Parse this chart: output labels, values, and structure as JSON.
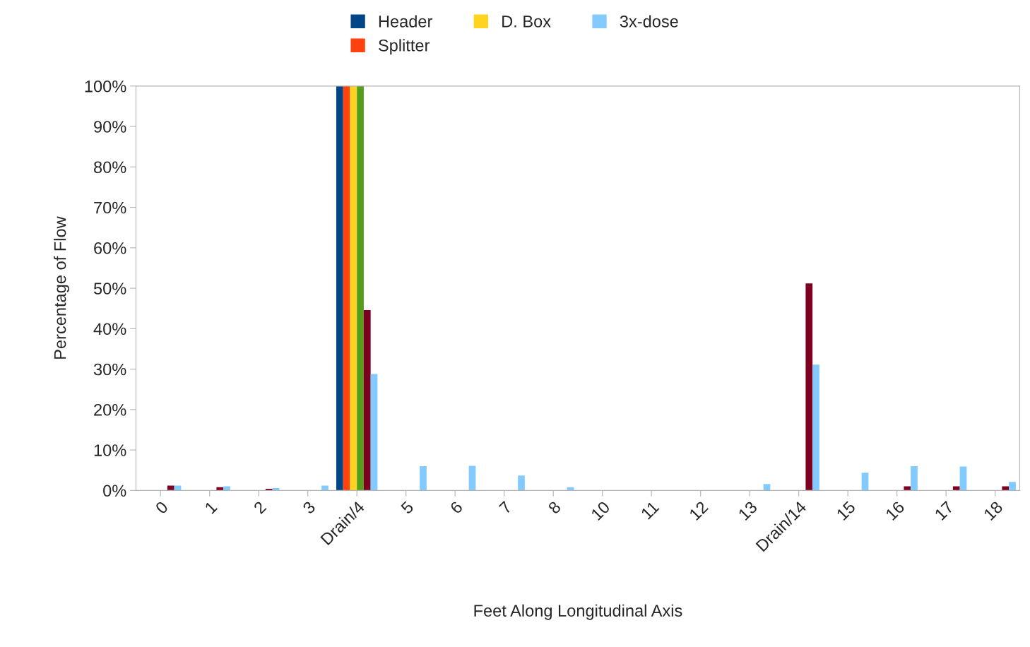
{
  "chart_data": {
    "type": "bar",
    "xlabel": "Feet Along Longitudinal Axis",
    "ylabel": "Percentage of Flow",
    "categories": [
      "0",
      "1",
      "2",
      "3",
      "Drain/4",
      "5",
      "6",
      "7",
      "8",
      "10",
      "11",
      "12",
      "13",
      "Drain/14",
      "15",
      "16",
      "17",
      "18"
    ],
    "series": [
      {
        "name": "Header",
        "color": "#004586",
        "values": [
          0,
          0,
          0,
          0,
          100,
          0,
          0,
          0,
          0,
          0,
          0,
          0,
          0,
          0,
          0,
          0,
          0,
          0
        ]
      },
      {
        "name": "Splitter",
        "color": "#ff420e",
        "values": [
          0,
          0,
          0,
          0,
          100,
          0,
          0,
          0,
          0,
          0,
          0,
          0,
          0,
          0,
          0,
          0,
          0,
          0
        ]
      },
      {
        "name": "D. Box",
        "color": "#ffd320",
        "values": [
          0,
          0,
          0,
          0,
          100,
          0,
          0,
          0,
          0,
          0,
          0,
          0,
          0,
          0,
          0,
          0,
          0,
          0
        ]
      },
      {
        "color": "#579d1c",
        "values": [
          0,
          0,
          0,
          0,
          100,
          0,
          0,
          0,
          0,
          0,
          0,
          0,
          0,
          0,
          0,
          0,
          0,
          0
        ]
      },
      {
        "color": "#7e0021",
        "values": [
          1.2,
          0.8,
          0.4,
          0,
          44.6,
          0,
          0,
          0,
          0,
          0,
          0,
          0,
          0,
          51.2,
          0,
          1,
          1,
          1
        ]
      },
      {
        "name": "3x-dose",
        "color": "#83caff",
        "values": [
          1.2,
          1,
          0.6,
          1.2,
          28.8,
          6,
          6.1,
          3.7,
          0.8,
          0,
          0,
          0,
          1.6,
          31.1,
          4.4,
          6,
          5.9,
          2.1
        ]
      }
    ],
    "ylim": [
      0,
      100
    ],
    "yticks": [
      {
        "value": 0,
        "label": "0%"
      },
      {
        "value": 10,
        "label": "10%"
      },
      {
        "value": 20,
        "label": "20%"
      },
      {
        "value": 30,
        "label": "30%"
      },
      {
        "value": 40,
        "label": "40%"
      },
      {
        "value": 50,
        "label": "50%"
      },
      {
        "value": 60,
        "label": "60%"
      },
      {
        "value": 70,
        "label": "70%"
      },
      {
        "value": 80,
        "label": "80%"
      },
      {
        "value": 90,
        "label": "90%"
      },
      {
        "value": 100,
        "label": "100%"
      }
    ],
    "legend": "top"
  }
}
